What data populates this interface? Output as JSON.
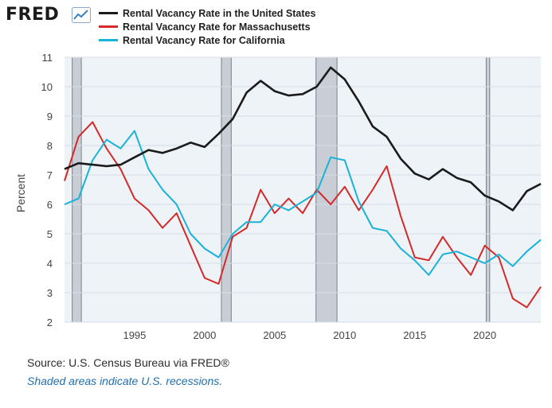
{
  "header": {
    "logo_text": "FRED",
    "logo_icon": "line-chart-icon"
  },
  "legend": [
    {
      "label": "Rental Vacancy Rate in the United States",
      "color": "#1b1b1b"
    },
    {
      "label": "Rental Vacancy Rate for Massachusetts",
      "color": "#d42a2a"
    },
    {
      "label": "Rental Vacancy Rate for California",
      "color": "#19b3d8"
    }
  ],
  "chart_data": {
    "type": "line",
    "title": "",
    "xlabel": "",
    "ylabel": "Percent",
    "xlim": [
      1990,
      2024
    ],
    "ylim": [
      2,
      11
    ],
    "yticks": [
      2,
      3,
      4,
      5,
      6,
      7,
      8,
      9,
      10,
      11
    ],
    "xticks": [
      1995,
      2000,
      2005,
      2010,
      2015,
      2020
    ],
    "recessions": [
      [
        1990.55,
        1991.2
      ],
      [
        2001.2,
        2001.9
      ],
      [
        2007.95,
        2009.45
      ],
      [
        2020.1,
        2020.35
      ]
    ],
    "x": [
      1990,
      1991,
      1992,
      1993,
      1994,
      1995,
      1996,
      1997,
      1998,
      1999,
      2000,
      2001,
      2002,
      2003,
      2004,
      2005,
      2006,
      2007,
      2008,
      2009,
      2010,
      2011,
      2012,
      2013,
      2014,
      2015,
      2016,
      2017,
      2018,
      2019,
      2020,
      2021,
      2022,
      2023,
      2024
    ],
    "series": [
      {
        "name": "Rental Vacancy Rate in the United States",
        "color": "#1b1b1b",
        "values": [
          7.2,
          7.4,
          7.35,
          7.3,
          7.35,
          7.6,
          7.85,
          7.75,
          7.9,
          8.1,
          7.95,
          8.4,
          8.9,
          9.8,
          10.2,
          9.85,
          9.7,
          9.75,
          10.0,
          10.65,
          10.25,
          9.5,
          8.65,
          8.3,
          7.55,
          7.05,
          6.85,
          7.2,
          6.9,
          6.75,
          6.3,
          6.1,
          5.8,
          6.45,
          6.7
        ]
      },
      {
        "name": "Rental Vacancy Rate for Massachusetts",
        "color": "#d42a2a",
        "values": [
          6.8,
          8.3,
          8.8,
          7.9,
          7.2,
          6.2,
          5.8,
          5.2,
          5.7,
          4.6,
          3.5,
          3.3,
          4.9,
          5.2,
          6.5,
          5.7,
          6.2,
          5.7,
          6.5,
          6.0,
          6.6,
          5.8,
          6.5,
          7.3,
          5.6,
          4.2,
          4.1,
          4.9,
          4.2,
          3.6,
          4.6,
          4.2,
          2.8,
          2.5,
          3.2
        ]
      },
      {
        "name": "Rental Vacancy Rate for California",
        "color": "#19b3d8",
        "values": [
          6.0,
          6.2,
          7.5,
          8.2,
          7.9,
          8.5,
          7.2,
          6.5,
          6.0,
          5.0,
          4.5,
          4.2,
          5.0,
          5.4,
          5.4,
          6.0,
          5.8,
          6.1,
          6.4,
          7.6,
          7.5,
          6.1,
          5.2,
          5.1,
          4.5,
          4.1,
          3.6,
          4.3,
          4.4,
          4.2,
          4.0,
          4.3,
          3.9,
          4.4,
          4.8
        ]
      }
    ]
  },
  "footer": {
    "source": "Source: U.S. Census Bureau via FRED®",
    "note": "Shaded areas indicate U.S. recessions."
  }
}
